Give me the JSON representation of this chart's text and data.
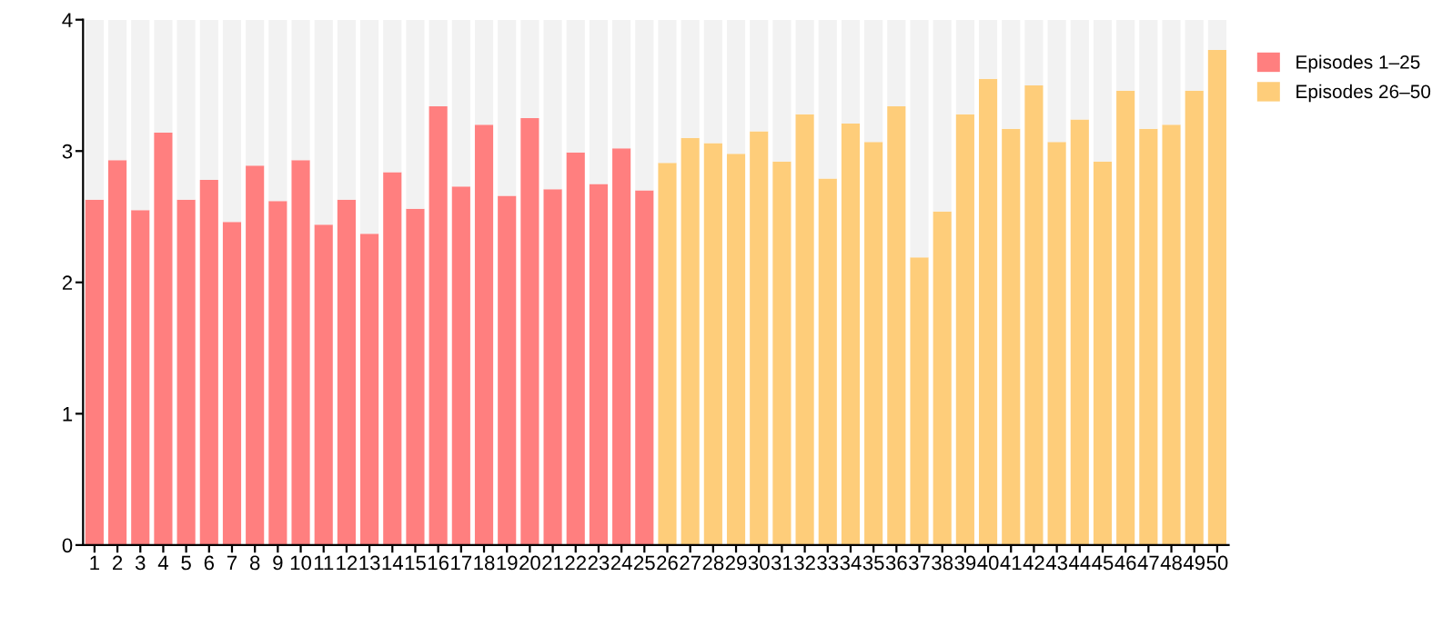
{
  "chart_data": {
    "type": "bar",
    "categories": [
      "1",
      "2",
      "3",
      "4",
      "5",
      "6",
      "7",
      "8",
      "9",
      "10",
      "11",
      "12",
      "13",
      "14",
      "15",
      "16",
      "17",
      "18",
      "19",
      "20",
      "21",
      "22",
      "23",
      "24",
      "25",
      "26",
      "27",
      "28",
      "29",
      "30",
      "31",
      "32",
      "33",
      "34",
      "35",
      "36",
      "37",
      "38",
      "39",
      "40",
      "41",
      "42",
      "43",
      "44",
      "45",
      "46",
      "47",
      "48",
      "49",
      "50"
    ],
    "stacked": true,
    "series": [
      {
        "name": "Episodes 1–25",
        "color": "#ff7f7f",
        "values": [
          2.63,
          2.93,
          2.55,
          3.14,
          2.63,
          2.78,
          2.46,
          2.89,
          2.62,
          2.93,
          2.44,
          2.63,
          2.37,
          2.84,
          2.56,
          3.34,
          2.73,
          3.2,
          2.66,
          3.25,
          2.71,
          2.99,
          2.75,
          3.02,
          2.7,
          null,
          null,
          null,
          null,
          null,
          null,
          null,
          null,
          null,
          null,
          null,
          null,
          null,
          null,
          null,
          null,
          null,
          null,
          null,
          null,
          null,
          null,
          null,
          null,
          null
        ]
      },
      {
        "name": "Episodes 26–50",
        "color": "#fecd7a",
        "values": [
          null,
          null,
          null,
          null,
          null,
          null,
          null,
          null,
          null,
          null,
          null,
          null,
          null,
          null,
          null,
          null,
          null,
          null,
          null,
          null,
          null,
          null,
          null,
          null,
          null,
          2.91,
          3.1,
          3.06,
          2.98,
          3.15,
          2.92,
          3.28,
          2.79,
          3.21,
          3.07,
          3.34,
          2.19,
          2.54,
          3.28,
          3.55,
          3.17,
          3.5,
          3.07,
          3.24,
          2.92,
          3.46,
          3.17,
          3.2,
          3.46,
          3.77
        ]
      },
      {
        "color": "#f2f2f2",
        "values": [
          1.37,
          1.07,
          1.45,
          0.86,
          1.37,
          1.22,
          1.54,
          1.11,
          1.38,
          1.07,
          1.56,
          1.37,
          1.63,
          1.16,
          1.44,
          0.66,
          1.27,
          0.8,
          1.34,
          0.75,
          1.29,
          1.01,
          1.25,
          0.98,
          1.3,
          1.09,
          0.9,
          0.94,
          1.02,
          0.85,
          1.08,
          0.72,
          1.21,
          0.79,
          0.93,
          0.66,
          1.81,
          1.46,
          0.72,
          0.45,
          0.83,
          0.5,
          0.93,
          0.76,
          1.08,
          0.54,
          0.83,
          0.8,
          0.54,
          0.23
        ]
      }
    ],
    "ylim": [
      0,
      4
    ],
    "yticks": [
      0,
      1,
      2,
      3,
      4
    ],
    "grid": false,
    "legend": "top right"
  }
}
